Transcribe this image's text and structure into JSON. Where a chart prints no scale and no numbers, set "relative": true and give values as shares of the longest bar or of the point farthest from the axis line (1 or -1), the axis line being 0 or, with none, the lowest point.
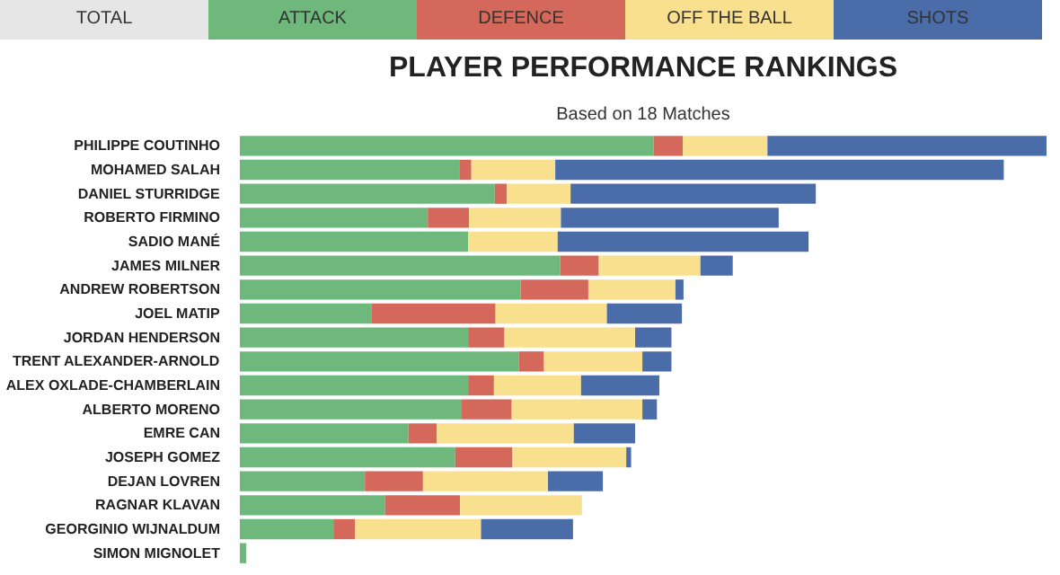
{
  "chart_data": {
    "type": "bar",
    "orientation": "horizontal",
    "stacked": true,
    "relative": true,
    "legend": "top",
    "title": "PLAYER PERFORMANCE RANKINGS",
    "subtitle": "Based on 18 Matches",
    "annotations": [
      "TOTAL"
    ],
    "categories": [
      "PHILIPPE COUTINHO",
      "MOHAMED SALAH",
      "DANIEL STURRIDGE",
      "ROBERTO FIRMINO",
      "SADIO MANÉ",
      "JAMES MILNER",
      "ANDREW ROBERTSON",
      "JOEL MATIP",
      "JORDAN HENDERSON",
      "TRENT ALEXANDER-ARNOLD",
      "ALEX OXLADE-CHAMBERLAIN",
      "ALBERTO MORENO",
      "EMRE CAN",
      "JOSEPH GOMEZ",
      "DEJAN LOVREN",
      "RAGNAR KLAVAN",
      "GEORGINIO WIJNALDUM",
      "SIMON MIGNOLET"
    ],
    "series": [
      {
        "name": "ATTACK",
        "color": "#6db87a",
        "values": [
          0.513,
          0.272,
          0.316,
          0.233,
          0.283,
          0.397,
          0.348,
          0.163,
          0.283,
          0.346,
          0.283,
          0.275,
          0.209,
          0.267,
          0.155,
          0.18,
          0.116,
          0.008
        ]
      },
      {
        "name": "DEFENCE",
        "color": "#d4685a",
        "values": [
          0.036,
          0.015,
          0.015,
          0.051,
          0,
          0.048,
          0.084,
          0.154,
          0.045,
          0.031,
          0.032,
          0.062,
          0.035,
          0.071,
          0.072,
          0.093,
          0.027,
          0
        ]
      },
      {
        "name": "OFF THE BALL",
        "color": "#f9e08e",
        "values": [
          0.105,
          0.104,
          0.079,
          0.114,
          0.111,
          0.126,
          0.108,
          0.138,
          0.162,
          0.122,
          0.108,
          0.162,
          0.17,
          0.141,
          0.155,
          0.151,
          0.156,
          0
        ]
      },
      {
        "name": "SHOTS",
        "color": "#4a6ca8",
        "values": [
          0.346,
          0.556,
          0.304,
          0.27,
          0.311,
          0.04,
          0.01,
          0.093,
          0.045,
          0.036,
          0.097,
          0.018,
          0.076,
          0.006,
          0.068,
          0,
          0.114,
          0
        ]
      }
    ]
  }
}
